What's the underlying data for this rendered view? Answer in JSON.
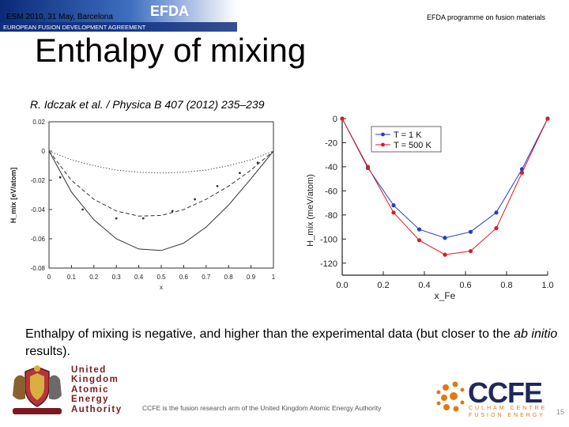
{
  "header": {
    "left": "ESM 2010, 31 May, Barcelona",
    "right": "EFDA programme on fusion materials",
    "banner_logo": "EFDA",
    "banner_sub": "EUROPEAN FUSION DEVELOPMENT AGREEMENT"
  },
  "title": "Enthalpy of mixing",
  "citation": "R. Idczak et al. / Physica B 407 (2012) 235–239",
  "caption": {
    "part1": "Enthalpy of mixing is negative, and higher than the experimental data (but closer to the ",
    "italic": "ab initio",
    "part2": " results)."
  },
  "footer": {
    "note": "CCFE is the fusion research arm of the United Kingdom Atomic Energy Authority",
    "ukaea_lines": [
      "United",
      "Kingdom",
      "Atomic",
      "Energy",
      "Authority"
    ],
    "ccfe_name": "CCFE",
    "ccfe_sub1": "CULHAM CENTRE",
    "ccfe_sub2": "FUSION ENERGY",
    "page_number": "15"
  },
  "colors": {
    "t1": "#1f3fc8",
    "t500": "#d81c24",
    "ukaea": "#7a1a20",
    "ccfe_blue": "#1e2a5a",
    "ccfe_orange": "#e07a10"
  },
  "chart_data": [
    {
      "type": "line",
      "ylabel": "H_mix [eV/atom]",
      "xlabel": "x",
      "xlim": [
        0,
        1
      ],
      "ylim": [
        -0.08,
        0.02
      ],
      "x_ticks": [
        "0",
        "0.1",
        "0.2",
        "0.3",
        "0.4",
        "0.5",
        "0.6",
        "0.7",
        "0.8",
        "0.9",
        "1"
      ],
      "y_ticks": [
        "0.02",
        "0",
        "-0.02",
        "-0.04",
        "-0.06",
        "-0.08"
      ],
      "series": [
        {
          "style": "dotted",
          "x": [
            0,
            0.1,
            0.2,
            0.3,
            0.4,
            0.5,
            0.6,
            0.7,
            0.8,
            0.9,
            1
          ],
          "y": [
            0,
            -0.006,
            -0.01,
            -0.013,
            -0.0145,
            -0.015,
            -0.0145,
            -0.013,
            -0.01,
            -0.006,
            0
          ]
        },
        {
          "style": "dashed",
          "x": [
            0,
            0.1,
            0.2,
            0.3,
            0.4,
            0.5,
            0.6,
            0.7,
            0.8,
            0.9,
            1
          ],
          "y": [
            0,
            -0.02,
            -0.033,
            -0.041,
            -0.0445,
            -0.044,
            -0.04,
            -0.033,
            -0.024,
            -0.013,
            0
          ]
        },
        {
          "style": "solid",
          "x": [
            0,
            0.1,
            0.2,
            0.3,
            0.4,
            0.5,
            0.6,
            0.7,
            0.8,
            0.9,
            1
          ],
          "y": [
            0,
            -0.028,
            -0.047,
            -0.06,
            -0.067,
            -0.068,
            -0.063,
            -0.052,
            -0.037,
            -0.019,
            0
          ]
        },
        {
          "style": "points",
          "x": [
            0.05,
            0.15,
            0.3,
            0.42,
            0.55,
            0.65,
            0.75,
            0.85,
            0.93
          ],
          "y": [
            -0.018,
            -0.04,
            -0.046,
            -0.046,
            -0.041,
            -0.033,
            -0.024,
            -0.015,
            -0.008
          ]
        }
      ]
    },
    {
      "type": "line",
      "ylabel": "H_mix (meV/atom)",
      "xlabel": "x_Fe",
      "xlim": [
        0,
        1
      ],
      "ylim": [
        -130,
        0
      ],
      "x_ticks": [
        "0.0",
        "0.2",
        "0.4",
        "0.6",
        "0.8",
        "1.0"
      ],
      "y_ticks": [
        "0",
        "-20",
        "-40",
        "-60",
        "-80",
        "-100",
        "-120"
      ],
      "legend": "top-right",
      "series": [
        {
          "name": "T = 1 K",
          "x": [
            0,
            0.125,
            0.25,
            0.375,
            0.5,
            0.625,
            0.75,
            0.875,
            1
          ],
          "y": [
            0,
            -41,
            -72,
            -92,
            -99,
            -94,
            -78,
            -42,
            0
          ]
        },
        {
          "name": "T = 500 K",
          "x": [
            0,
            0.125,
            0.25,
            0.375,
            0.5,
            0.625,
            0.75,
            0.875,
            1
          ],
          "y": [
            0,
            -40,
            -78,
            -101,
            -113,
            -110,
            -91,
            -45,
            0
          ]
        }
      ]
    }
  ]
}
